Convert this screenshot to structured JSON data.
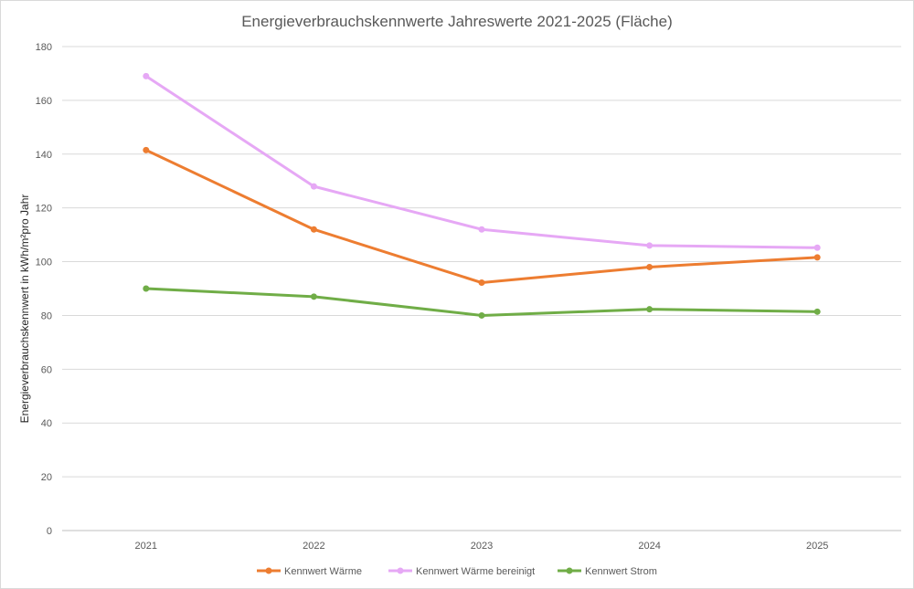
{
  "chart_data": {
    "type": "line",
    "title": "Energieverbrauchskennwerte  Jahreswerte 2021-2025 (Fläche)",
    "xlabel": "",
    "ylabel": "Energieverbrauchskennwert in kWh/m²pro Jahr",
    "categories": [
      "2021",
      "2022",
      "2023",
      "2024",
      "2025"
    ],
    "ylim": [
      0,
      180
    ],
    "yticks": [
      0,
      20,
      40,
      60,
      80,
      100,
      120,
      140,
      160,
      180
    ],
    "grid": true,
    "legend_position": "bottom",
    "series": [
      {
        "name": "Kennwert Wärme",
        "color": "#ED7D31",
        "values": [
          141.5,
          112,
          92.2,
          98,
          101.6
        ]
      },
      {
        "name": "Kennwert Wärme bereinigt",
        "color": "#E6A8F5",
        "values": [
          169,
          128,
          112,
          106,
          105.2
        ]
      },
      {
        "name": "Kennwert Strom",
        "color": "#70AD47",
        "values": [
          90,
          87,
          80,
          82.3,
          81.4
        ]
      }
    ]
  }
}
